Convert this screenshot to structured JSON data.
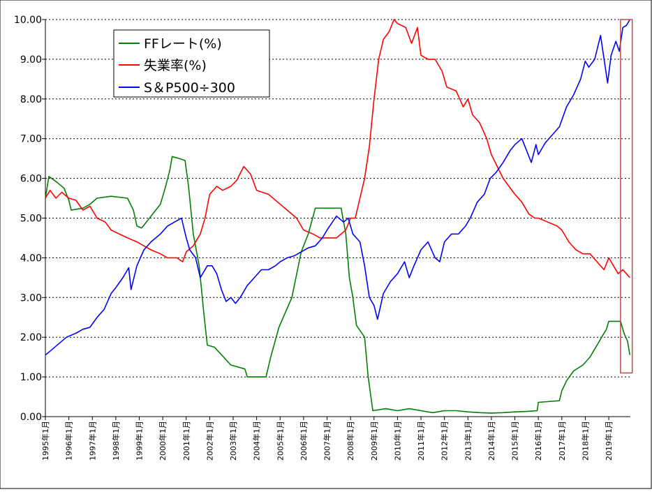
{
  "chart_data": {
    "type": "line",
    "title": "",
    "xlabel": "",
    "ylabel": "",
    "ylim": [
      0,
      10
    ],
    "yticks": [
      "0.00",
      "1.00",
      "2.00",
      "3.00",
      "4.00",
      "5.00",
      "6.00",
      "7.00",
      "8.00",
      "9.00",
      "10.00"
    ],
    "grid": "horizontal dotted",
    "legend_position": "top-left",
    "x_range": [
      1995.0,
      2019.92
    ],
    "x_tick_years": [
      1995,
      1996,
      1997,
      1998,
      1999,
      2000,
      2001,
      2002,
      2003,
      2004,
      2005,
      2006,
      2007,
      2008,
      2009,
      2010,
      2011,
      2012,
      2013,
      2014,
      2015,
      2016,
      2017,
      2018,
      2019
    ],
    "x_tick_labels": [
      "1995年1月",
      "1996年1月",
      "1997年1月",
      "1998年1月",
      "1999年1月",
      "2000年1月",
      "2001年1月",
      "2002年1月",
      "2003年1月",
      "2004年1月",
      "2005年1月",
      "2006年1月",
      "2007年1月",
      "2008年1月",
      "2009年1月",
      "2010年1月",
      "2011年1月",
      "2012年1月",
      "2013年1月",
      "2014年1月",
      "2015年1月",
      "2016年1月",
      "2017年1月",
      "2018年1月",
      "2019年1月"
    ],
    "highlight_box": {
      "x_from": 2019.5,
      "x_to": 2020.0,
      "y_from": 1.1,
      "y_to": 10.0,
      "color": "#c04a4a"
    },
    "series": [
      {
        "name": "FFレート(%)",
        "color": "#008000",
        "points": [
          [
            1995.0,
            5.5
          ],
          [
            1995.15,
            6.05
          ],
          [
            1995.5,
            5.9
          ],
          [
            1995.8,
            5.75
          ],
          [
            1996.0,
            5.45
          ],
          [
            1996.1,
            5.2
          ],
          [
            1996.6,
            5.25
          ],
          [
            1996.9,
            5.35
          ],
          [
            1997.2,
            5.5
          ],
          [
            1997.8,
            5.55
          ],
          [
            1998.5,
            5.5
          ],
          [
            1998.75,
            5.2
          ],
          [
            1998.9,
            4.8
          ],
          [
            1999.1,
            4.75
          ],
          [
            1999.5,
            5.05
          ],
          [
            1999.9,
            5.35
          ],
          [
            2000.1,
            5.75
          ],
          [
            2000.3,
            6.2
          ],
          [
            2000.4,
            6.55
          ],
          [
            2000.7,
            6.5
          ],
          [
            2000.95,
            6.45
          ],
          [
            2001.1,
            5.8
          ],
          [
            2001.3,
            4.6
          ],
          [
            2001.55,
            3.8
          ],
          [
            2001.75,
            2.6
          ],
          [
            2001.9,
            1.8
          ],
          [
            2002.2,
            1.75
          ],
          [
            2002.9,
            1.3
          ],
          [
            2003.5,
            1.2
          ],
          [
            2003.6,
            1.0
          ],
          [
            2004.4,
            1.0
          ],
          [
            2004.6,
            1.5
          ],
          [
            2004.95,
            2.25
          ],
          [
            2005.5,
            3.0
          ],
          [
            2005.9,
            4.15
          ],
          [
            2006.2,
            4.6
          ],
          [
            2006.5,
            5.25
          ],
          [
            2007.6,
            5.25
          ],
          [
            2007.8,
            4.6
          ],
          [
            2007.95,
            3.5
          ],
          [
            2008.1,
            3.0
          ],
          [
            2008.25,
            2.3
          ],
          [
            2008.6,
            2.0
          ],
          [
            2008.75,
            1.0
          ],
          [
            2008.95,
            0.15
          ],
          [
            2009.5,
            0.2
          ],
          [
            2010.0,
            0.15
          ],
          [
            2010.5,
            0.2
          ],
          [
            2011.0,
            0.15
          ],
          [
            2011.5,
            0.1
          ],
          [
            2012.0,
            0.15
          ],
          [
            2012.5,
            0.15
          ],
          [
            2013.0,
            0.12
          ],
          [
            2013.5,
            0.1
          ],
          [
            2014.0,
            0.09
          ],
          [
            2014.5,
            0.1
          ],
          [
            2015.0,
            0.12
          ],
          [
            2015.5,
            0.13
          ],
          [
            2015.95,
            0.15
          ],
          [
            2016.0,
            0.36
          ],
          [
            2016.9,
            0.4
          ],
          [
            2017.0,
            0.65
          ],
          [
            2017.2,
            0.9
          ],
          [
            2017.5,
            1.15
          ],
          [
            2017.9,
            1.3
          ],
          [
            2018.2,
            1.5
          ],
          [
            2018.4,
            1.7
          ],
          [
            2018.65,
            1.95
          ],
          [
            2018.9,
            2.2
          ],
          [
            2019.0,
            2.4
          ],
          [
            2019.5,
            2.4
          ],
          [
            2019.65,
            2.1
          ],
          [
            2019.8,
            1.9
          ],
          [
            2019.9,
            1.55
          ]
        ]
      },
      {
        "name": "失業率(%)",
        "color": "#ff0000",
        "points": [
          [
            1995.0,
            5.5
          ],
          [
            1995.2,
            5.7
          ],
          [
            1995.45,
            5.5
          ],
          [
            1995.7,
            5.65
          ],
          [
            1996.0,
            5.5
          ],
          [
            1996.3,
            5.45
          ],
          [
            1996.6,
            5.2
          ],
          [
            1996.9,
            5.3
          ],
          [
            1997.2,
            5.0
          ],
          [
            1997.55,
            4.9
          ],
          [
            1997.8,
            4.7
          ],
          [
            1998.15,
            4.6
          ],
          [
            1998.5,
            4.5
          ],
          [
            1998.9,
            4.4
          ],
          [
            1999.2,
            4.3
          ],
          [
            1999.5,
            4.2
          ],
          [
            1999.9,
            4.1
          ],
          [
            2000.2,
            4.0
          ],
          [
            2000.6,
            4.0
          ],
          [
            2000.85,
            3.9
          ],
          [
            2001.0,
            4.15
          ],
          [
            2001.3,
            4.3
          ],
          [
            2001.6,
            4.6
          ],
          [
            2001.8,
            5.0
          ],
          [
            2002.0,
            5.6
          ],
          [
            2002.3,
            5.8
          ],
          [
            2002.55,
            5.7
          ],
          [
            2002.9,
            5.8
          ],
          [
            2003.15,
            5.95
          ],
          [
            2003.45,
            6.3
          ],
          [
            2003.75,
            6.1
          ],
          [
            2004.0,
            5.7
          ],
          [
            2004.5,
            5.6
          ],
          [
            2004.9,
            5.4
          ],
          [
            2005.3,
            5.2
          ],
          [
            2005.7,
            5.0
          ],
          [
            2006.0,
            4.7
          ],
          [
            2006.4,
            4.6
          ],
          [
            2006.7,
            4.5
          ],
          [
            2007.0,
            4.5
          ],
          [
            2007.4,
            4.5
          ],
          [
            2007.8,
            4.7
          ],
          [
            2008.0,
            5.0
          ],
          [
            2008.2,
            5.0
          ],
          [
            2008.4,
            5.5
          ],
          [
            2008.6,
            6.0
          ],
          [
            2008.8,
            6.8
          ],
          [
            2009.0,
            8.0
          ],
          [
            2009.2,
            9.0
          ],
          [
            2009.4,
            9.5
          ],
          [
            2009.65,
            9.7
          ],
          [
            2009.85,
            10.0
          ],
          [
            2010.0,
            9.9
          ],
          [
            2010.35,
            9.8
          ],
          [
            2010.6,
            9.4
          ],
          [
            2010.85,
            9.8
          ],
          [
            2011.0,
            9.1
          ],
          [
            2011.3,
            9.0
          ],
          [
            2011.6,
            9.0
          ],
          [
            2011.9,
            8.7
          ],
          [
            2012.1,
            8.3
          ],
          [
            2012.5,
            8.2
          ],
          [
            2012.8,
            7.8
          ],
          [
            2013.0,
            8.0
          ],
          [
            2013.2,
            7.6
          ],
          [
            2013.5,
            7.4
          ],
          [
            2013.8,
            7.0
          ],
          [
            2014.0,
            6.6
          ],
          [
            2014.25,
            6.3
          ],
          [
            2014.5,
            6.0
          ],
          [
            2014.75,
            5.8
          ],
          [
            2015.0,
            5.6
          ],
          [
            2015.3,
            5.4
          ],
          [
            2015.6,
            5.1
          ],
          [
            2015.85,
            5.0
          ],
          [
            2016.0,
            5.0
          ],
          [
            2016.4,
            4.9
          ],
          [
            2016.8,
            4.8
          ],
          [
            2017.0,
            4.7
          ],
          [
            2017.3,
            4.4
          ],
          [
            2017.6,
            4.2
          ],
          [
            2017.9,
            4.1
          ],
          [
            2018.2,
            4.1
          ],
          [
            2018.5,
            3.9
          ],
          [
            2018.8,
            3.7
          ],
          [
            2019.0,
            4.0
          ],
          [
            2019.2,
            3.8
          ],
          [
            2019.4,
            3.6
          ],
          [
            2019.6,
            3.7
          ],
          [
            2019.75,
            3.6
          ],
          [
            2019.9,
            3.5
          ]
        ]
      },
      {
        "name": "S＆P500÷300",
        "color": "#0000ff",
        "points": [
          [
            1995.0,
            1.55
          ],
          [
            1995.3,
            1.7
          ],
          [
            1995.6,
            1.85
          ],
          [
            1995.9,
            2.0
          ],
          [
            1996.3,
            2.1
          ],
          [
            1996.6,
            2.2
          ],
          [
            1996.9,
            2.25
          ],
          [
            1997.2,
            2.5
          ],
          [
            1997.5,
            2.7
          ],
          [
            1997.8,
            3.1
          ],
          [
            1998.0,
            3.25
          ],
          [
            1998.3,
            3.5
          ],
          [
            1998.55,
            3.75
          ],
          [
            1998.65,
            3.2
          ],
          [
            1998.9,
            3.8
          ],
          [
            1999.2,
            4.2
          ],
          [
            1999.5,
            4.4
          ],
          [
            1999.9,
            4.6
          ],
          [
            2000.2,
            4.8
          ],
          [
            2000.5,
            4.9
          ],
          [
            2000.8,
            5.0
          ],
          [
            2001.0,
            4.5
          ],
          [
            2001.15,
            4.2
          ],
          [
            2001.4,
            4.0
          ],
          [
            2001.6,
            3.5
          ],
          [
            2001.9,
            3.8
          ],
          [
            2002.1,
            3.8
          ],
          [
            2002.3,
            3.6
          ],
          [
            2002.5,
            3.2
          ],
          [
            2002.7,
            2.9
          ],
          [
            2002.9,
            3.0
          ],
          [
            2003.1,
            2.85
          ],
          [
            2003.3,
            3.0
          ],
          [
            2003.6,
            3.3
          ],
          [
            2003.9,
            3.5
          ],
          [
            2004.2,
            3.7
          ],
          [
            2004.5,
            3.7
          ],
          [
            2004.8,
            3.8
          ],
          [
            2005.0,
            3.9
          ],
          [
            2005.3,
            4.0
          ],
          [
            2005.6,
            4.05
          ],
          [
            2005.9,
            4.15
          ],
          [
            2006.2,
            4.25
          ],
          [
            2006.5,
            4.3
          ],
          [
            2006.8,
            4.5
          ],
          [
            2007.0,
            4.7
          ],
          [
            2007.4,
            5.05
          ],
          [
            2007.7,
            4.9
          ],
          [
            2007.9,
            5.0
          ],
          [
            2008.1,
            4.6
          ],
          [
            2008.4,
            4.4
          ],
          [
            2008.6,
            3.8
          ],
          [
            2008.8,
            3.0
          ],
          [
            2009.0,
            2.8
          ],
          [
            2009.15,
            2.45
          ],
          [
            2009.4,
            3.1
          ],
          [
            2009.7,
            3.4
          ],
          [
            2010.0,
            3.6
          ],
          [
            2010.3,
            3.9
          ],
          [
            2010.5,
            3.5
          ],
          [
            2010.7,
            3.8
          ],
          [
            2011.0,
            4.2
          ],
          [
            2011.3,
            4.4
          ],
          [
            2011.6,
            4.0
          ],
          [
            2011.8,
            3.9
          ],
          [
            2012.0,
            4.4
          ],
          [
            2012.3,
            4.6
          ],
          [
            2012.6,
            4.6
          ],
          [
            2012.9,
            4.8
          ],
          [
            2013.1,
            5.0
          ],
          [
            2013.4,
            5.4
          ],
          [
            2013.7,
            5.6
          ],
          [
            2013.95,
            6.0
          ],
          [
            2014.2,
            6.15
          ],
          [
            2014.5,
            6.4
          ],
          [
            2014.8,
            6.7
          ],
          [
            2015.0,
            6.85
          ],
          [
            2015.3,
            7.0
          ],
          [
            2015.5,
            6.7
          ],
          [
            2015.7,
            6.4
          ],
          [
            2015.9,
            6.85
          ],
          [
            2016.0,
            6.6
          ],
          [
            2016.3,
            6.9
          ],
          [
            2016.6,
            7.1
          ],
          [
            2016.9,
            7.3
          ],
          [
            2017.2,
            7.8
          ],
          [
            2017.5,
            8.1
          ],
          [
            2017.8,
            8.5
          ],
          [
            2018.0,
            8.95
          ],
          [
            2018.15,
            8.8
          ],
          [
            2018.4,
            9.0
          ],
          [
            2018.65,
            9.6
          ],
          [
            2018.95,
            8.4
          ],
          [
            2019.1,
            9.1
          ],
          [
            2019.3,
            9.45
          ],
          [
            2019.45,
            9.2
          ],
          [
            2019.6,
            9.8
          ],
          [
            2019.75,
            9.85
          ],
          [
            2019.9,
            10.0
          ]
        ]
      }
    ]
  }
}
